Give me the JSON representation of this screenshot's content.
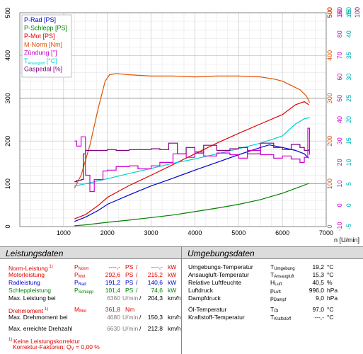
{
  "chart_data": {
    "type": "line",
    "x_axis": {
      "label": "n [U/min]",
      "range": [
        0,
        7000
      ],
      "ticks": [
        1000,
        2000,
        3000,
        4000,
        5000,
        6000,
        7000
      ]
    },
    "left_axis": {
      "range": [
        0,
        500
      ],
      "ticks": [
        0,
        100,
        200,
        300,
        400,
        500
      ]
    },
    "right_axes": [
      {
        "color": "#e05000",
        "labels": [
          "0",
          "100",
          "200",
          "300",
          "400",
          "500"
        ]
      },
      {
        "color": "#d000d0",
        "labels": [
          "-10",
          "0",
          "10",
          "20",
          "30",
          "40",
          "50",
          "60",
          "70",
          "80",
          "90"
        ]
      },
      {
        "color": "#00b0b0",
        "labels": [
          "-5",
          "0",
          "5",
          "10",
          "15",
          "20",
          "25",
          "30",
          "35",
          "40",
          "45"
        ]
      }
    ],
    "right_top_labels": [
      {
        "text": "500",
        "color": "#e05000"
      },
      {
        "text": "160",
        "color": "#d000d0"
      },
      {
        "text": "150",
        "color": "#00b0b0"
      },
      {
        "text": "100",
        "color": "#800080"
      }
    ],
    "legend": [
      {
        "name": "P-Rad [PS]",
        "color": "#0000d0"
      },
      {
        "name": "P-Schlepp [PS]",
        "color": "#008000"
      },
      {
        "name": "P-Mot [PS]",
        "color": "#e00000"
      },
      {
        "name": "M-Norm [Nm]",
        "color": "#e05000"
      },
      {
        "name": "Zündung [°]",
        "color": "#d000d0"
      },
      {
        "name": "T",
        "sub": "Ansaugluft",
        "suffix": " [°C]",
        "color": "#00d0d0"
      },
      {
        "name": "Gaspedal [%]",
        "color": "#800080"
      }
    ],
    "series": [
      {
        "name": "P-Rad [PS]",
        "color": "#0000d0",
        "x": [
          1250,
          1500,
          1800,
          2000,
          2500,
          3000,
          3500,
          4000,
          4500,
          5000,
          5500,
          5700,
          6000,
          6300,
          6500,
          6600
        ],
        "y": [
          12,
          22,
          38,
          52,
          74,
          95,
          113,
          132,
          150,
          168,
          185,
          191,
          185,
          178,
          170,
          160
        ]
      },
      {
        "name": "P-Schlepp [PS]",
        "color": "#008000",
        "x": [
          1250,
          1500,
          2000,
          2500,
          3000,
          3500,
          4000,
          4500,
          5000,
          5500,
          6000,
          6500,
          6600
        ],
        "y": [
          2,
          4,
          10,
          15,
          21,
          27,
          35,
          43,
          52,
          63,
          78,
          97,
          101
        ]
      },
      {
        "name": "P-Mot [PS]",
        "color": "#e00000",
        "x": [
          1250,
          1500,
          1800,
          2000,
          2500,
          3000,
          3500,
          4000,
          4500,
          5000,
          5500,
          6000,
          6300,
          6500,
          6600
        ],
        "y": [
          18,
          28,
          50,
          68,
          96,
          120,
          145,
          170,
          195,
          218,
          240,
          262,
          285,
          292,
          285
        ]
      },
      {
        "name": "M-Norm [Nm]",
        "color": "#e05000",
        "x": [
          1250,
          1400,
          1600,
          1800,
          1950,
          2050,
          2200,
          2500,
          3000,
          3500,
          4000,
          4500,
          5000,
          5500,
          5800,
          6000,
          6200,
          6400,
          6550,
          6620
        ],
        "y": [
          90,
          120,
          190,
          280,
          340,
          355,
          358,
          355,
          352,
          352,
          350,
          352,
          352,
          350,
          345,
          340,
          330,
          320,
          305,
          290
        ]
      },
      {
        "name": "T",
        "color": "#00d0d0",
        "x": [
          1250,
          1500,
          2000,
          2500,
          3000,
          3500,
          4000,
          4500,
          5000,
          5500,
          6000,
          6300,
          6500,
          6620
        ],
        "y": [
          95,
          100,
          112,
          124,
          136,
          148,
          158,
          170,
          182,
          195,
          212,
          240,
          252,
          255
        ]
      },
      {
        "name": "Gaspedal [%]",
        "color": "#800080",
        "x": [
          1250,
          1300,
          1400,
          1450,
          1500,
          2000,
          2200,
          2500,
          3000,
          3200,
          3400,
          3600,
          3800,
          4000,
          4200,
          4500,
          4800,
          5000,
          5200,
          5500,
          5800,
          6000,
          6200,
          6400,
          6500,
          6600
        ],
        "y": [
          105,
          108,
          110,
          170,
          178,
          180,
          178,
          180,
          182,
          180,
          195,
          170,
          185,
          172,
          190,
          178,
          182,
          185,
          170,
          195,
          185,
          180,
          192,
          185,
          178,
          180
        ]
      },
      {
        "name": "Zündung [°]",
        "color": "#d000d0",
        "x": [
          1250,
          1300,
          1400,
          1500,
          1600,
          1700,
          1900,
          2000,
          2200,
          2500,
          2700,
          3000,
          3200,
          3500,
          3800,
          4000,
          4200,
          4500,
          4800,
          5000,
          5200,
          5500,
          5800,
          6000,
          6200,
          6400,
          6500,
          6580,
          6620
        ],
        "y": [
          200,
          188,
          210,
          120,
          82,
          110,
          130,
          132,
          140,
          142,
          135,
          142,
          150,
          170,
          162,
          175,
          165,
          172,
          168,
          160,
          178,
          168,
          160,
          165,
          158,
          150,
          162,
          230,
          168
        ]
      }
    ]
  },
  "left_panel": {
    "title": "Leistungsdaten",
    "rows": [
      {
        "label": "Norm-Leistung",
        "sup": "1)",
        "sym": "P",
        "sub": "Norm",
        "v1": "----,-",
        "u1": "PS",
        "v2": "----,-",
        "u2": "kW",
        "color": "red"
      },
      {
        "label": "Motorleistung",
        "sym": "P",
        "sub": "Mot",
        "v1": "292,6",
        "u1": "PS",
        "v2": "215,2",
        "u2": "kW",
        "color": "red"
      },
      {
        "label": "Radleistung",
        "sym": "P",
        "sub": "Rad",
        "v1": "191,2",
        "u1": "PS",
        "v2": "140,6",
        "u2": "kW",
        "color": "blue"
      },
      {
        "label": "Schleppleistung",
        "sym": "P",
        "sub": "Schlepp",
        "v1": "101,4",
        "u1": "PS",
        "v2": "74,6",
        "u2": "kW",
        "color": "green"
      }
    ],
    "max_leistung": {
      "label": "Max. Leistung bei",
      "v1": "6360",
      "u1": "U/min",
      "v2": "204,3",
      "u2": "km/h"
    },
    "drehmoment": {
      "label": "Drehmoment",
      "sup": "1)",
      "sym": "M",
      "sub": "Mot",
      "v1": "361,8",
      "u1": "Nm"
    },
    "max_drehmoment": {
      "label": "Max. Drehmoment bei",
      "v1": "4680",
      "u1": "U/min",
      "v2": "150,3",
      "u2": "km/h"
    },
    "max_drehzahl": {
      "label": "Max. erreichte Drehzahl",
      "v1": "6630",
      "u1": "U/min",
      "v2": "212,8",
      "u2": "km/h"
    },
    "footnote1": "Keine Leistungskorrektur",
    "footnote1_sup": "1)",
    "footnote2": "Korrektur-Faktoren: Q",
    "footnote2_sub": "V",
    "footnote2_val": "=   0,00 %"
  },
  "right_panel": {
    "title": "Umgebungsdaten",
    "rows": [
      {
        "label": "Umgebungs-Temperatur",
        "sym": "T",
        "sub": "Umgebung",
        "val": "19,2",
        "unit": "°C"
      },
      {
        "label": "Ansaugluft-Temperatur",
        "sym": "T",
        "sub": "Ansaugluft",
        "val": "15,3",
        "unit": "°C"
      },
      {
        "label": "Relative Luftfeuchte",
        "sym": "H",
        "sub": "Luft",
        "val": "40,5",
        "unit": "%"
      },
      {
        "label": "Luftdruck",
        "sym": "p",
        "sub": "Luft",
        "val": "996,0",
        "unit": "hPa"
      },
      {
        "label": "Dampfdruck",
        "sym": "p",
        "sub": "Dampf",
        "val": "9,0",
        "unit": "hPa"
      },
      {
        "label": "Öl-Temperatur",
        "sym": "T",
        "sub": "Öl",
        "val": "97,0",
        "unit": "°C"
      },
      {
        "label": "Kraftstoff-Temperatur",
        "sym": "T",
        "sub": "Kraftstoff",
        "val": "---,-",
        "unit": "°C"
      }
    ]
  }
}
